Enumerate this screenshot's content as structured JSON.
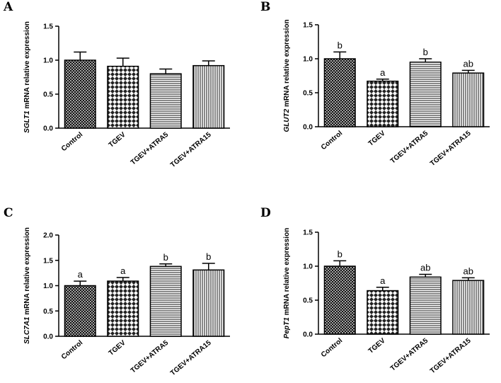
{
  "chart_data": [
    {
      "type": "bar",
      "panel": "A",
      "gene": "SGLT1",
      "ylabel_suffix": " mRNA relative expression",
      "categories": [
        "Control",
        "TGEV",
        "TGEV+ATRA5",
        "TGEV+ATRA15"
      ],
      "values": [
        1.0,
        0.91,
        0.8,
        0.92
      ],
      "errors": [
        0.12,
        0.12,
        0.07,
        0.07
      ],
      "significance": [
        "",
        "",
        "",
        ""
      ],
      "ylim": [
        0,
        1.5
      ],
      "yticks": [
        "0.0",
        "0.5",
        "1.0",
        "1.5"
      ],
      "ytick_values": [
        0,
        0.5,
        1.0,
        1.5
      ]
    },
    {
      "type": "bar",
      "panel": "B",
      "gene": "GLUT2",
      "ylabel_suffix": " mRNA relative expression",
      "categories": [
        "Control",
        "TGEV",
        "TGEV+ATRA5",
        "TGEV+ATRA15"
      ],
      "values": [
        1.0,
        0.67,
        0.95,
        0.79
      ],
      "errors": [
        0.1,
        0.03,
        0.05,
        0.04
      ],
      "significance": [
        "b",
        "a",
        "b",
        "ab"
      ],
      "ylim": [
        0,
        1.5
      ],
      "yticks": [
        "0.0",
        "0.5",
        "1.0",
        "1.5"
      ],
      "ytick_values": [
        0,
        0.5,
        1.0,
        1.5
      ]
    },
    {
      "type": "bar",
      "panel": "C",
      "gene": "SLC7A1",
      "ylabel_suffix": " mRNA relative expression",
      "categories": [
        "Control",
        "TGEV",
        "TGEV+ATRA5",
        "TGEV+ATRA15"
      ],
      "values": [
        1.0,
        1.09,
        1.38,
        1.31
      ],
      "errors": [
        0.09,
        0.07,
        0.05,
        0.13
      ],
      "significance": [
        "a",
        "a",
        "b",
        "b"
      ],
      "ylim": [
        0,
        2.0
      ],
      "yticks": [
        "0.0",
        "0.5",
        "1.0",
        "1.5",
        "2.0"
      ],
      "ytick_values": [
        0,
        0.5,
        1.0,
        1.5,
        2.0
      ]
    },
    {
      "type": "bar",
      "panel": "D",
      "gene": "PepT1",
      "ylabel_suffix": " mRNA relative expression",
      "categories": [
        "Control",
        "TGEV",
        "TGEV+ATRA5",
        "TGEV+ATRA15"
      ],
      "values": [
        1.0,
        0.64,
        0.84,
        0.79
      ],
      "errors": [
        0.08,
        0.05,
        0.04,
        0.04
      ],
      "significance": [
        "b",
        "a",
        "ab",
        "ab"
      ],
      "ylim": [
        0,
        1.5
      ],
      "yticks": [
        "0.0",
        "0.5",
        "1.0",
        "1.5"
      ],
      "ytick_values": [
        0,
        0.5,
        1.0,
        1.5
      ]
    }
  ],
  "patterns": [
    "crosshatch",
    "checker",
    "horizontal-lines",
    "vertical-lines"
  ]
}
